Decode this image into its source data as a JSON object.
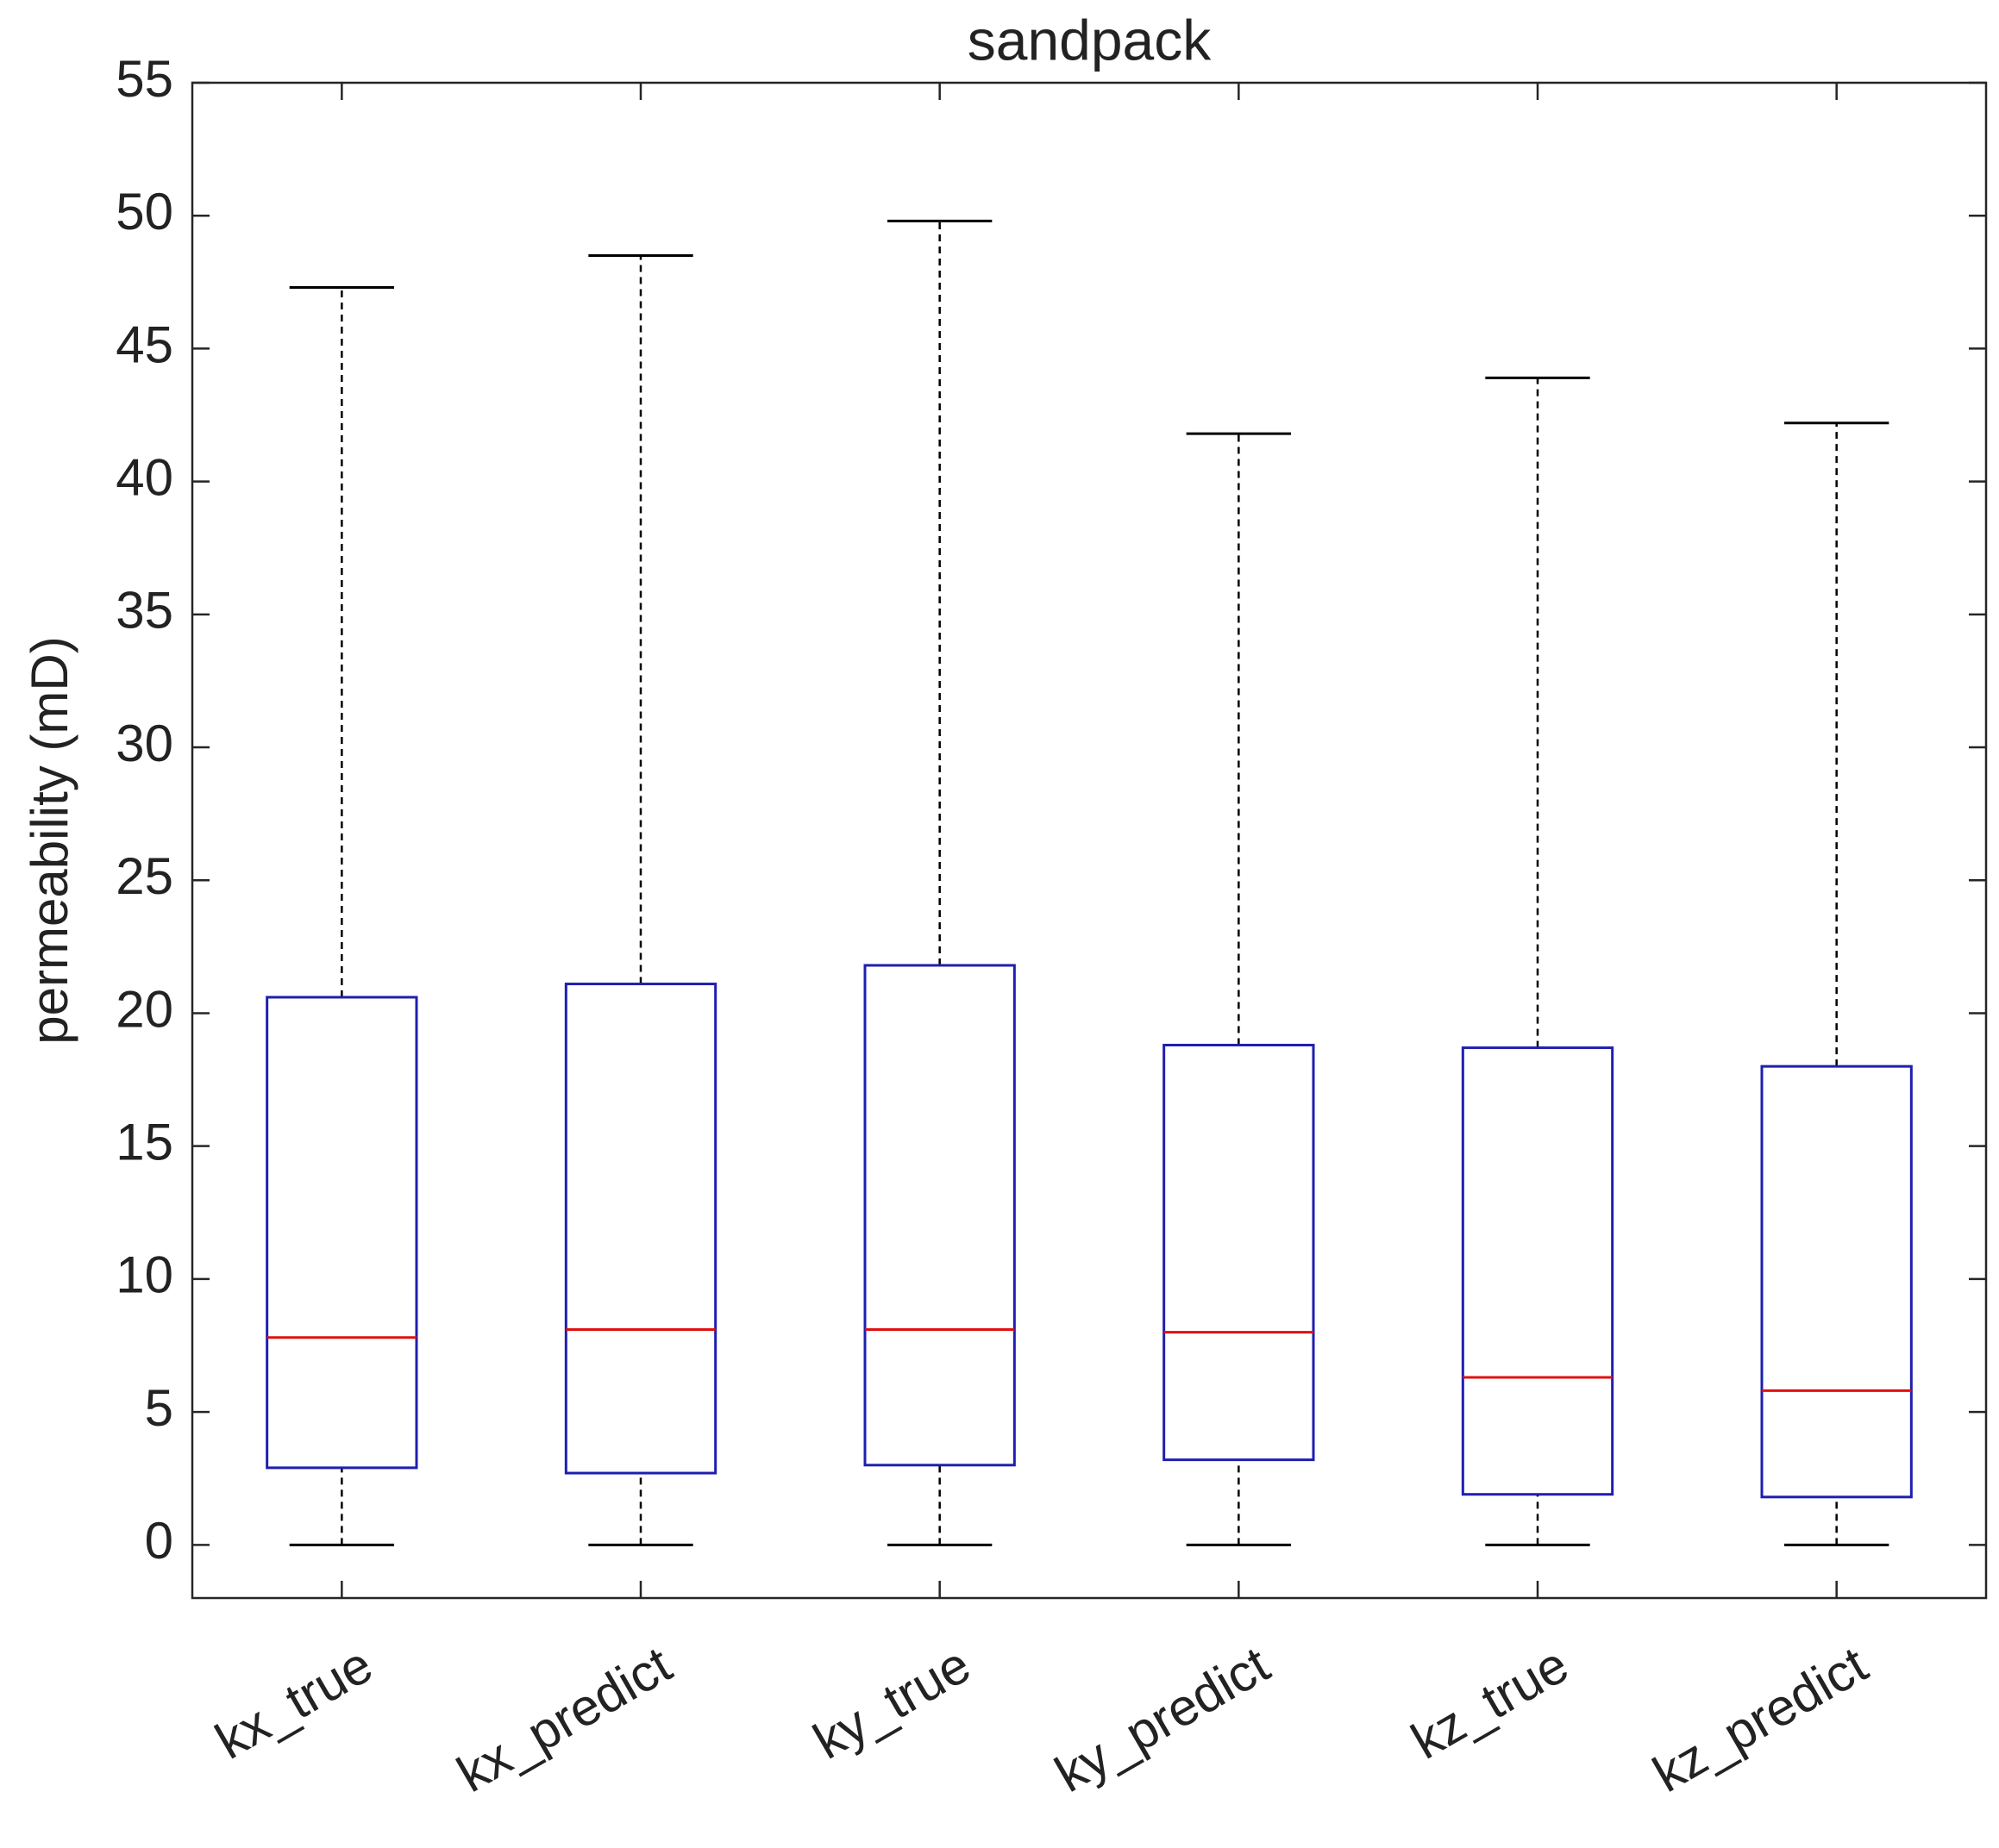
{
  "chart_data": {
    "type": "box",
    "title": "sandpack",
    "y_label": "permeability (mD)",
    "categories": [
      "kx_true",
      "kx_predict",
      "ky_true",
      "ky_predict",
      "kz_true",
      "kz_predict"
    ],
    "min": [
      0,
      0,
      0,
      0,
      0,
      0
    ],
    "q1": [
      2.9,
      2.7,
      3.0,
      3.2,
      1.9,
      1.8
    ],
    "median": [
      7.8,
      8.1,
      8.1,
      8.0,
      6.3,
      5.8
    ],
    "q3": [
      20.6,
      21.1,
      21.8,
      18.8,
      18.7,
      18.0
    ],
    "max": [
      47.3,
      48.5,
      49.8,
      41.8,
      43.9,
      42.2
    ],
    "box_color": "#1f1fb0",
    "median_color": "#e01010",
    "whisker_color": "#000000",
    "ylim": [
      -2,
      55
    ],
    "yticks": [
      0,
      5,
      10,
      15,
      20,
      25,
      30,
      35,
      40,
      45,
      50,
      55
    ]
  }
}
